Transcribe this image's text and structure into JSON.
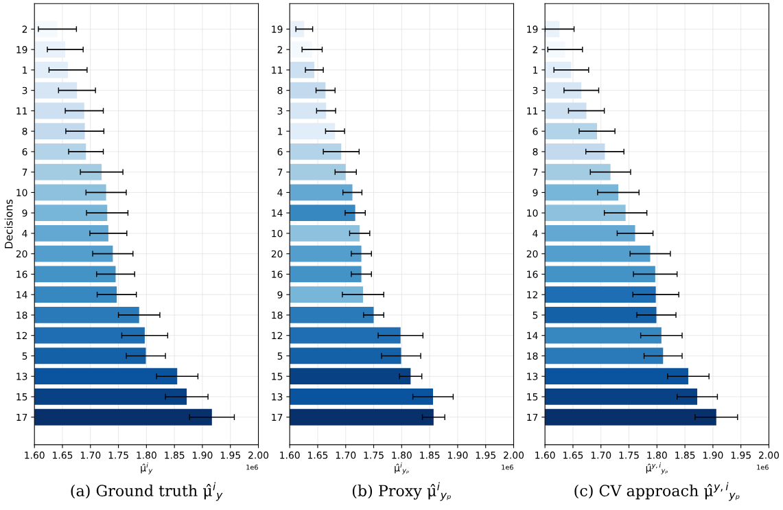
{
  "chart_data": [
    {
      "type": "bar",
      "orientation": "horizontal",
      "title": "(a) Ground truth μ̂$^{i}$$_{y}$",
      "xlabel": "μ̂$^{i}$$_{y}$",
      "ylabel": "Decisions",
      "annotations": [
        "1e6"
      ],
      "grid": true,
      "categories": [
        "2",
        "19",
        "1",
        "3",
        "11",
        "8",
        "6",
        "7",
        "10",
        "9",
        "4",
        "20",
        "16",
        "14",
        "18",
        "12",
        "5",
        "13",
        "15",
        "17"
      ],
      "values": [
        1.641,
        1.655,
        1.66,
        1.676,
        1.689,
        1.69,
        1.692,
        1.72,
        1.728,
        1.73,
        1.732,
        1.74,
        1.745,
        1.747,
        1.787,
        1.797,
        1.799,
        1.855,
        1.872,
        1.917
      ],
      "errors": [
        0.034,
        0.032,
        0.034,
        0.033,
        0.034,
        0.034,
        0.031,
        0.038,
        0.036,
        0.037,
        0.033,
        0.036,
        0.034,
        0.035,
        0.037,
        0.041,
        0.035,
        0.037,
        0.038,
        0.04
      ],
      "colors": [
        "#f4f9fe",
        "#e9f2fb",
        "#e1edf8",
        "#d6e6f4",
        "#cde0f1",
        "#c3daee",
        "#b3d3e8",
        "#a3cce3",
        "#8dc1dd",
        "#77b5d9",
        "#62a8d3",
        "#539ecd",
        "#4493c7",
        "#3787c0",
        "#2a7ab9",
        "#1f6eb3",
        "#1461a8",
        "#0a539e",
        "#084285",
        "#08306b"
      ],
      "xlim": [
        1.6,
        2.0
      ],
      "xticks": [
        {
          "value": 1.6,
          "label": "1.60"
        },
        {
          "value": 1.65,
          "label": "1.65"
        },
        {
          "value": 1.7,
          "label": "1.70"
        },
        {
          "value": 1.75,
          "label": "1.75"
        },
        {
          "value": 1.8,
          "label": "1.80"
        },
        {
          "value": 1.85,
          "label": "1.85"
        },
        {
          "value": 1.9,
          "label": "1.90"
        },
        {
          "value": 1.95,
          "label": "1.95"
        },
        {
          "value": 2.0,
          "label": "2.00"
        }
      ]
    },
    {
      "type": "bar",
      "orientation": "horizontal",
      "title": "(b) Proxy μ̂$^{i}$$_{yₚ}$",
      "xlabel": "μ̂$^{i}$$_{yₚ}$",
      "annotations": [
        "1e6"
      ],
      "grid": true,
      "categories": [
        "19",
        "2",
        "11",
        "8",
        "3",
        "1",
        "6",
        "7",
        "4",
        "14",
        "10",
        "20",
        "16",
        "9",
        "18",
        "12",
        "5",
        "15",
        "13",
        "17"
      ],
      "values": [
        1.626,
        1.64,
        1.644,
        1.664,
        1.665,
        1.681,
        1.692,
        1.7,
        1.712,
        1.717,
        1.725,
        1.728,
        1.728,
        1.731,
        1.75,
        1.798,
        1.799,
        1.816,
        1.856,
        1.857
      ],
      "errors": [
        0.015,
        0.018,
        0.016,
        0.017,
        0.017,
        0.017,
        0.032,
        0.019,
        0.017,
        0.018,
        0.018,
        0.018,
        0.018,
        0.037,
        0.018,
        0.04,
        0.035,
        0.02,
        0.036,
        0.02
      ],
      "colors": [
        "#e9f2fb",
        "#f4f9fe",
        "#cde0f1",
        "#c3daee",
        "#d6e6f4",
        "#e1edf8",
        "#b3d3e8",
        "#a3cce3",
        "#62a8d3",
        "#3787c0",
        "#8dc1dd",
        "#539ecd",
        "#4493c7",
        "#77b5d9",
        "#2a7ab9",
        "#1f6eb3",
        "#1461a8",
        "#084285",
        "#0a539e",
        "#08306b"
      ],
      "xlim": [
        1.6,
        2.0
      ],
      "xticks": [
        {
          "value": 1.6,
          "label": "1.60"
        },
        {
          "value": 1.65,
          "label": "1.65"
        },
        {
          "value": 1.7,
          "label": "1.70"
        },
        {
          "value": 1.75,
          "label": "1.75"
        },
        {
          "value": 1.8,
          "label": "1.80"
        },
        {
          "value": 1.85,
          "label": "1.85"
        },
        {
          "value": 1.9,
          "label": "1.90"
        },
        {
          "value": 1.95,
          "label": "1.95"
        },
        {
          "value": 2.0,
          "label": "2.00"
        }
      ]
    },
    {
      "type": "bar",
      "orientation": "horizontal",
      "title": "(c) CV approach μ̂$^{y,i}$$_{yₚ}$",
      "xlabel": "μ̂$^{y,i}$$_{yₚ}$",
      "annotations": [
        "1e6"
      ],
      "grid": true,
      "categories": [
        "19",
        "2",
        "1",
        "3",
        "11",
        "6",
        "8",
        "7",
        "9",
        "10",
        "4",
        "20",
        "16",
        "12",
        "5",
        "14",
        "18",
        "13",
        "15",
        "17"
      ],
      "values": [
        1.626,
        1.636,
        1.647,
        1.665,
        1.674,
        1.693,
        1.707,
        1.717,
        1.731,
        1.744,
        1.761,
        1.788,
        1.797,
        1.798,
        1.799,
        1.808,
        1.811,
        1.856,
        1.872,
        1.906
      ],
      "errors": [
        0.026,
        0.031,
        0.031,
        0.031,
        0.032,
        0.032,
        0.034,
        0.036,
        0.037,
        0.038,
        0.032,
        0.036,
        0.039,
        0.041,
        0.035,
        0.037,
        0.034,
        0.037,
        0.036,
        0.038
      ],
      "colors": [
        "#e9f2fb",
        "#f4f9fe",
        "#e1edf8",
        "#d6e6f4",
        "#cde0f1",
        "#b3d3e8",
        "#c3daee",
        "#a3cce3",
        "#77b5d9",
        "#8dc1dd",
        "#62a8d3",
        "#539ecd",
        "#4493c7",
        "#1f6eb3",
        "#1461a8",
        "#3787c0",
        "#2a7ab9",
        "#0a539e",
        "#084285",
        "#08306b"
      ],
      "xlim": [
        1.6,
        2.0
      ],
      "xticks": [
        {
          "value": 1.6,
          "label": "1.60"
        },
        {
          "value": 1.65,
          "label": "1.65"
        },
        {
          "value": 1.7,
          "label": "1.70"
        },
        {
          "value": 1.75,
          "label": "1.75"
        },
        {
          "value": 1.8,
          "label": "1.80"
        },
        {
          "value": 1.85,
          "label": "1.85"
        },
        {
          "value": 1.9,
          "label": "1.90"
        },
        {
          "value": 1.95,
          "label": "1.95"
        },
        {
          "value": 2.0,
          "label": "2.00"
        }
      ]
    }
  ]
}
